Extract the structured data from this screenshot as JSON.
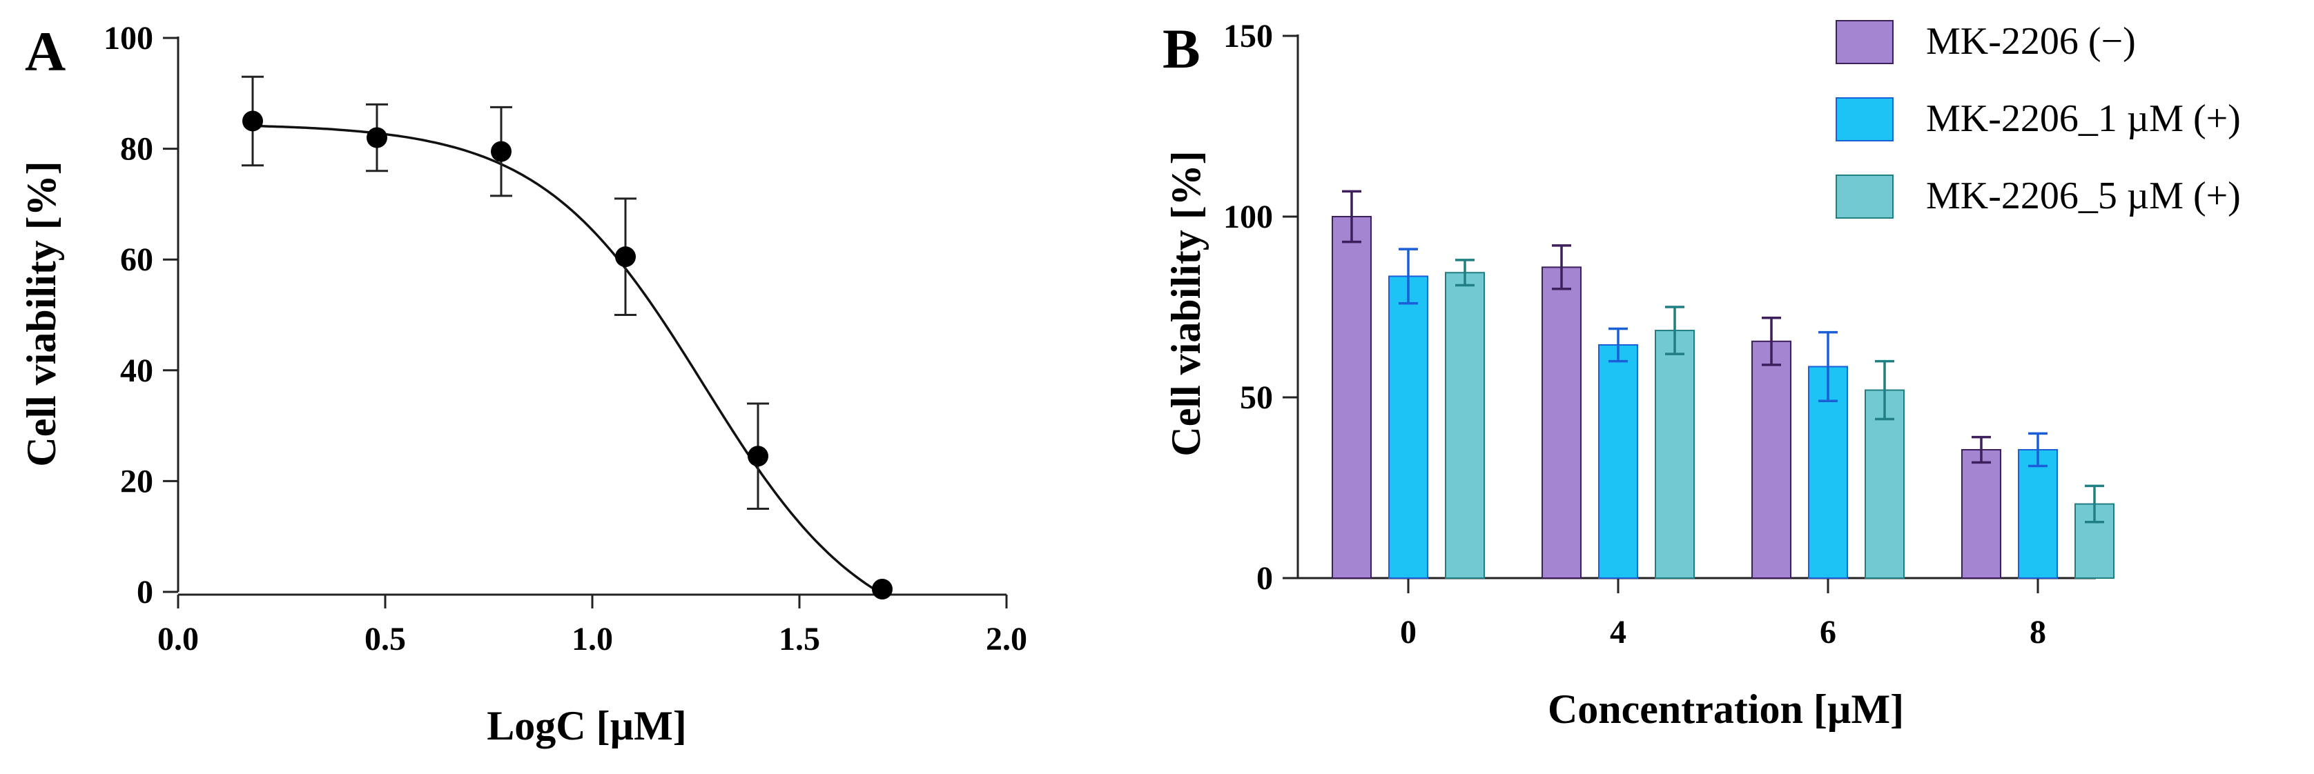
{
  "chart_data": [
    {
      "panel": "A",
      "type": "scatter",
      "title": "",
      "xlabel": "LogC [µM]",
      "ylabel": "Cell viability [%]",
      "xlim": [
        0.0,
        2.0
      ],
      "ylim": [
        0,
        100
      ],
      "xticks": [
        "0.0",
        "0.5",
        "1.0",
        "1.5",
        "2.0"
      ],
      "yticks": [
        "0",
        "20",
        "40",
        "60",
        "80",
        "100"
      ],
      "points": [
        {
          "x": 0.18,
          "y": 85,
          "err": 8
        },
        {
          "x": 0.48,
          "y": 82,
          "err": 6
        },
        {
          "x": 0.78,
          "y": 79.5,
          "err": 8
        },
        {
          "x": 1.08,
          "y": 60.5,
          "err": 10.5
        },
        {
          "x": 1.4,
          "y": 24.5,
          "err": 9.5
        },
        {
          "x": 1.7,
          "y": 0.5,
          "err": 0
        }
      ],
      "fit": {
        "type": "sigmoid",
        "top": 84.5,
        "bottom": -10,
        "logIC50": 1.27,
        "hill": 2.2
      }
    },
    {
      "panel": "B",
      "type": "bar",
      "title": "",
      "xlabel": "Concentration [µM]",
      "ylabel": "Cell viability [%]",
      "ylim": [
        0,
        150
      ],
      "yticks": [
        "0",
        "50",
        "100",
        "150"
      ],
      "categories": [
        "0",
        "4",
        "6",
        "8"
      ],
      "series": [
        {
          "name": "MK-2206 (−)",
          "color": "#a385d1",
          "stroke": "#3d1f5c",
          "values": [
            100,
            86,
            65.5,
            35.5
          ],
          "errors": [
            7,
            6,
            6.5,
            3.5
          ]
        },
        {
          "name": "MK-2206_1 µM (+)",
          "color": "#1ec3f6",
          "stroke": "#1a5fd6",
          "values": [
            83.5,
            64.5,
            58.5,
            35.5
          ],
          "errors": [
            7.5,
            4.5,
            9.5,
            4.5
          ]
        },
        {
          "name": "MK-2206_5 µM (+)",
          "color": "#72c9d1",
          "stroke": "#207f82",
          "values": [
            84.5,
            68.5,
            52,
            20.5
          ],
          "errors": [
            3.5,
            6.5,
            8,
            5
          ]
        }
      ],
      "legend_position": "top-right"
    }
  ]
}
